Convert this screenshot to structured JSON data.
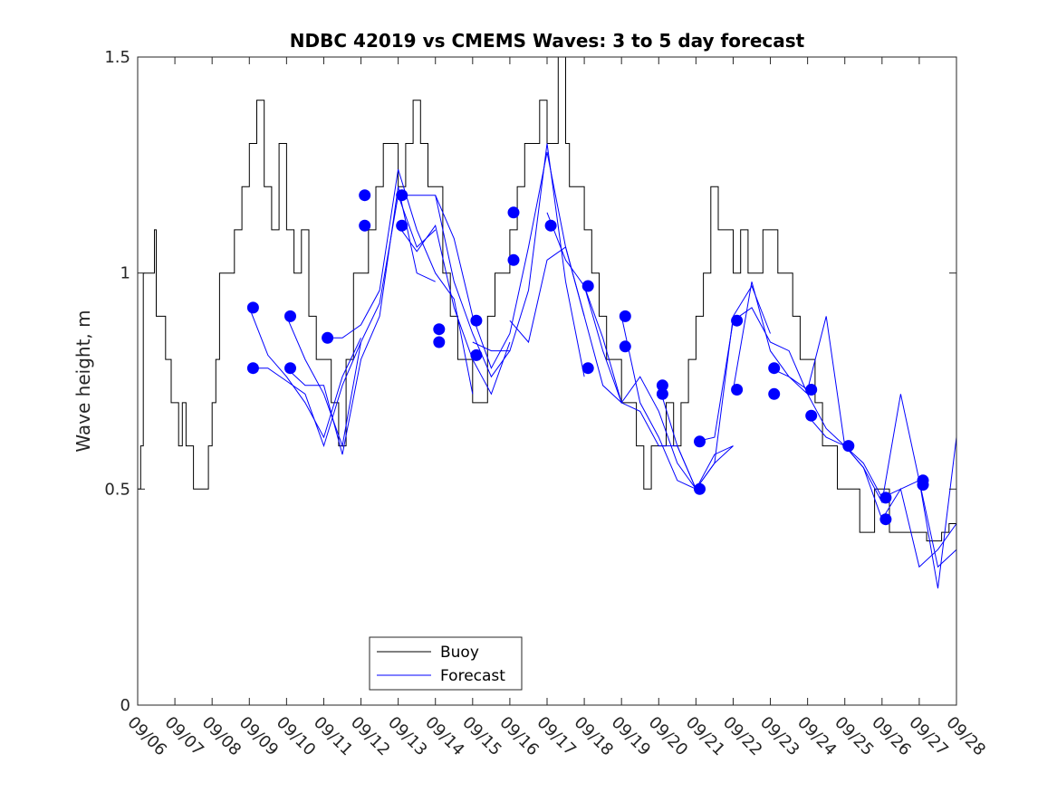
{
  "chart_data": {
    "type": "line",
    "title": "NDBC 42019 vs CMEMS Waves: 3 to 5 day forecast",
    "xlabel": "",
    "ylabel": "Wave height, m",
    "xlim": [
      0,
      22
    ],
    "ylim": [
      0,
      1.5
    ],
    "x_tick_labels": [
      "09/06",
      "09/07",
      "09/08",
      "09/09",
      "09/10",
      "09/11",
      "09/12",
      "09/13",
      "09/14",
      "09/15",
      "09/16",
      "09/17",
      "09/18",
      "09/19",
      "09/20",
      "09/21",
      "09/22",
      "09/23",
      "09/24",
      "09/25",
      "09/26",
      "09/27",
      "09/28"
    ],
    "y_ticks": [
      0,
      0.5,
      1,
      1.5
    ],
    "y_tick_labels": [
      "0",
      "0.5",
      "1",
      "1.5"
    ],
    "legend": {
      "position": "bottom-left",
      "entries": [
        {
          "label": "Buoy",
          "color": "#000000"
        },
        {
          "label": "Forecast",
          "color": "#0000ff"
        }
      ]
    },
    "colors": {
      "buoy": "#000000",
      "forecast": "#0000ff",
      "axes": "#262626"
    },
    "buoy": {
      "name": "Buoy",
      "x": [
        0,
        0.08,
        0.15,
        0.25,
        0.35,
        0.45,
        0.5,
        0.6,
        0.75,
        0.9,
        1.0,
        1.1,
        1.2,
        1.3,
        1.4,
        1.5,
        1.7,
        1.9,
        2.0,
        2.1,
        2.2,
        2.4,
        2.6,
        2.8,
        3.0,
        3.2,
        3.4,
        3.6,
        3.8,
        4.0,
        4.2,
        4.4,
        4.6,
        4.8,
        5.0,
        5.2,
        5.4,
        5.6,
        5.8,
        6.0,
        6.2,
        6.4,
        6.6,
        6.8,
        7.0,
        7.2,
        7.4,
        7.6,
        7.8,
        8.0,
        8.2,
        8.4,
        8.6,
        8.8,
        9.0,
        9.2,
        9.4,
        9.6,
        9.8,
        10.0,
        10.2,
        10.4,
        10.6,
        10.8,
        11.0,
        11.2,
        11.3,
        11.4,
        11.5,
        11.6,
        11.8,
        12.0,
        12.2,
        12.4,
        12.6,
        12.8,
        13.0,
        13.2,
        13.4,
        13.6,
        13.8,
        14.0,
        14.2,
        14.4,
        14.6,
        14.8,
        15.0,
        15.2,
        15.4,
        15.6,
        15.8,
        16.0,
        16.2,
        16.4,
        16.6,
        16.8,
        17.0,
        17.2,
        17.4,
        17.6,
        17.8,
        18.0,
        18.2,
        18.4,
        18.6,
        18.8,
        19.0,
        19.2,
        19.4,
        19.6,
        19.8,
        20.0,
        20.2,
        20.4,
        20.6,
        20.8,
        21.0,
        21.2,
        21.4,
        21.6,
        21.8,
        22.0
      ],
      "values": [
        0.5,
        0.6,
        1.0,
        1.0,
        1.0,
        1.1,
        0.9,
        0.9,
        0.8,
        0.7,
        0.7,
        0.6,
        0.7,
        0.6,
        0.6,
        0.5,
        0.5,
        0.6,
        0.7,
        0.8,
        1.0,
        1.0,
        1.1,
        1.2,
        1.3,
        1.4,
        1.2,
        1.1,
        1.3,
        1.1,
        1.0,
        1.1,
        0.9,
        0.8,
        0.8,
        0.7,
        0.6,
        0.8,
        1.0,
        1.0,
        1.1,
        1.2,
        1.3,
        1.3,
        1.2,
        1.3,
        1.4,
        1.3,
        1.2,
        1.2,
        1.0,
        0.9,
        0.8,
        0.8,
        0.7,
        0.7,
        0.9,
        1.0,
        1.0,
        1.1,
        1.2,
        1.3,
        1.3,
        1.4,
        1.3,
        1.3,
        1.5,
        1.5,
        1.3,
        1.2,
        1.2,
        1.1,
        1.0,
        0.9,
        0.8,
        0.8,
        0.7,
        0.7,
        0.6,
        0.5,
        0.6,
        0.6,
        0.7,
        0.6,
        0.7,
        0.8,
        0.9,
        1.0,
        1.2,
        1.1,
        1.1,
        1.0,
        1.1,
        1.0,
        1.0,
        1.1,
        1.1,
        1.0,
        1.0,
        0.9,
        0.8,
        0.8,
        0.7,
        0.6,
        0.6,
        0.5,
        0.5,
        0.5,
        0.4,
        0.4,
        0.5,
        0.5,
        0.4,
        0.4,
        0.4,
        0.4,
        0.4,
        0.38,
        0.38,
        0.4,
        0.42,
        0.42
      ]
    },
    "forecast_series": [
      {
        "name": "Forecast",
        "x": [
          3.0,
          3.5,
          4.0,
          4.5,
          5.0,
          5.5,
          6.0
        ],
        "values": [
          0.92,
          0.81,
          0.76,
          0.7,
          0.62,
          0.76,
          0.85
        ]
      },
      {
        "name": "Forecast",
        "x": [
          3.0,
          3.5,
          4.0,
          4.5,
          5.0,
          5.5,
          6.0
        ],
        "values": [
          0.78,
          0.78,
          0.75,
          0.72,
          0.6,
          0.74,
          0.84
        ]
      },
      {
        "name": "Forecast",
        "x": [
          4.0,
          4.5,
          5.0,
          5.5,
          6.0,
          6.5,
          7.0,
          7.5,
          8.0
        ],
        "values": [
          0.9,
          0.8,
          0.72,
          0.6,
          0.84,
          0.93,
          1.18,
          1.06,
          1.1
        ]
      },
      {
        "name": "Forecast",
        "x": [
          4.0,
          4.5,
          5.0,
          5.5,
          6.0,
          6.5,
          7.0,
          7.5,
          8.0
        ],
        "values": [
          0.78,
          0.74,
          0.74,
          0.58,
          0.8,
          0.9,
          1.2,
          1.0,
          0.98
        ]
      },
      {
        "name": "Forecast",
        "x": [
          5.0,
          5.5,
          6.0,
          6.5,
          7.0,
          7.5,
          8.0,
          8.5,
          9.0
        ],
        "values": [
          0.85,
          0.85,
          0.88,
          0.96,
          1.24,
          1.1,
          1.0,
          0.94,
          0.72
        ]
      },
      {
        "name": "Forecast",
        "x": [
          7.0,
          7.5,
          8.0,
          8.5,
          9.0,
          9.5,
          10.0
        ],
        "values": [
          1.18,
          1.18,
          1.18,
          0.98,
          0.86,
          0.76,
          0.82
        ]
      },
      {
        "name": "Forecast",
        "x": [
          7.0,
          7.5,
          8.0,
          8.5,
          9.0,
          9.5,
          10.0
        ],
        "values": [
          1.11,
          1.05,
          1.11,
          0.92,
          0.8,
          0.72,
          0.84
        ]
      },
      {
        "name": "Forecast",
        "x": [
          8.0,
          8.5,
          9.0,
          9.5,
          10.0,
          10.5,
          11.0,
          11.5,
          12.0
        ],
        "values": [
          1.18,
          1.08,
          0.9,
          0.78,
          0.86,
          1.06,
          1.28,
          1.06,
          0.9
        ]
      },
      {
        "name": "Forecast",
        "x": [
          9.0,
          9.5,
          10.0,
          10.5,
          11.0,
          11.5,
          12.0
        ],
        "values": [
          0.84,
          0.82,
          0.82,
          0.96,
          1.3,
          0.98,
          0.76
        ]
      },
      {
        "name": "Forecast",
        "x": [
          10.0,
          10.5,
          11.0,
          11.5,
          12.0,
          12.5,
          13.0
        ],
        "values": [
          0.89,
          0.84,
          1.03,
          1.06,
          0.9,
          0.74,
          0.7
        ]
      },
      {
        "name": "Forecast",
        "x": [
          11.0,
          11.5,
          12.0,
          12.5,
          13.0,
          13.5,
          14.0,
          14.5,
          15.0
        ],
        "values": [
          1.14,
          1.03,
          0.97,
          0.82,
          0.7,
          0.68,
          0.6,
          0.6,
          0.5
        ]
      },
      {
        "name": "Forecast",
        "x": [
          12.0,
          12.5,
          13.0,
          13.5,
          14.0,
          14.5,
          15.0,
          15.5,
          16.0
        ],
        "values": [
          0.97,
          0.85,
          0.7,
          0.76,
          0.68,
          0.56,
          0.5,
          0.58,
          0.6
        ]
      },
      {
        "name": "Forecast",
        "x": [
          13.0,
          13.5,
          14.0,
          14.5,
          15.0,
          15.5,
          16.0
        ],
        "values": [
          0.9,
          0.7,
          0.62,
          0.52,
          0.5,
          0.56,
          0.6
        ]
      },
      {
        "name": "Forecast",
        "x": [
          14.0,
          14.5,
          15.0,
          15.5,
          16.0,
          16.5,
          17.0
        ],
        "values": [
          0.74,
          0.6,
          0.5,
          0.56,
          0.9,
          0.97,
          0.86
        ]
      },
      {
        "name": "Forecast",
        "x": [
          15.0,
          15.5,
          16.0,
          16.5,
          17.0,
          17.5,
          18.0
        ],
        "values": [
          0.61,
          0.62,
          0.89,
          0.92,
          0.84,
          0.82,
          0.72
        ]
      },
      {
        "name": "Forecast",
        "x": [
          16.0,
          16.5,
          17.0,
          17.5,
          18.0,
          18.5,
          19.0
        ],
        "values": [
          0.73,
          0.98,
          0.82,
          0.76,
          0.72,
          0.64,
          0.6
        ]
      },
      {
        "name": "Forecast",
        "x": [
          17.0,
          17.5,
          18.0,
          18.5,
          19.0,
          19.5,
          20.0
        ],
        "values": [
          0.78,
          0.76,
          0.73,
          0.9,
          0.6,
          0.56,
          0.48
        ]
      },
      {
        "name": "Forecast",
        "x": [
          18.0,
          18.5,
          19.0,
          19.5,
          20.0,
          20.5,
          21.0,
          21.5,
          22.0
        ],
        "values": [
          0.67,
          0.62,
          0.6,
          0.55,
          0.43,
          0.5,
          0.32,
          0.36,
          0.42
        ]
      },
      {
        "name": "Forecast",
        "x": [
          19.0,
          19.5,
          20.0,
          20.5,
          21.0,
          21.5,
          22.0
        ],
        "values": [
          0.6,
          0.55,
          0.47,
          0.72,
          0.52,
          0.27,
          0.62
        ]
      },
      {
        "name": "Forecast",
        "x": [
          20.0,
          20.5,
          21.0,
          21.5,
          22.0
        ],
        "values": [
          0.48,
          0.5,
          0.52,
          0.32,
          0.36
        ]
      }
    ],
    "forecast_markers": {
      "x": [
        3.1,
        3.1,
        4.1,
        4.1,
        5.1,
        6.1,
        6.1,
        7.1,
        7.1,
        8.1,
        8.1,
        9.1,
        9.1,
        10.1,
        10.1,
        11.1,
        12.1,
        12.1,
        13.1,
        13.1,
        14.1,
        14.1,
        15.1,
        15.1,
        16.1,
        16.1,
        17.1,
        17.1,
        18.1,
        18.1,
        19.1,
        20.1,
        20.1,
        21.1,
        21.1
      ],
      "values": [
        0.92,
        0.78,
        0.9,
        0.78,
        0.85,
        1.18,
        1.11,
        1.18,
        1.11,
        0.87,
        0.84,
        0.89,
        0.81,
        1.14,
        1.03,
        1.11,
        0.97,
        0.78,
        0.9,
        0.83,
        0.74,
        0.72,
        0.61,
        0.5,
        0.89,
        0.73,
        0.78,
        0.72,
        0.73,
        0.67,
        0.6,
        0.48,
        0.43,
        0.52,
        0.51
      ]
    }
  }
}
